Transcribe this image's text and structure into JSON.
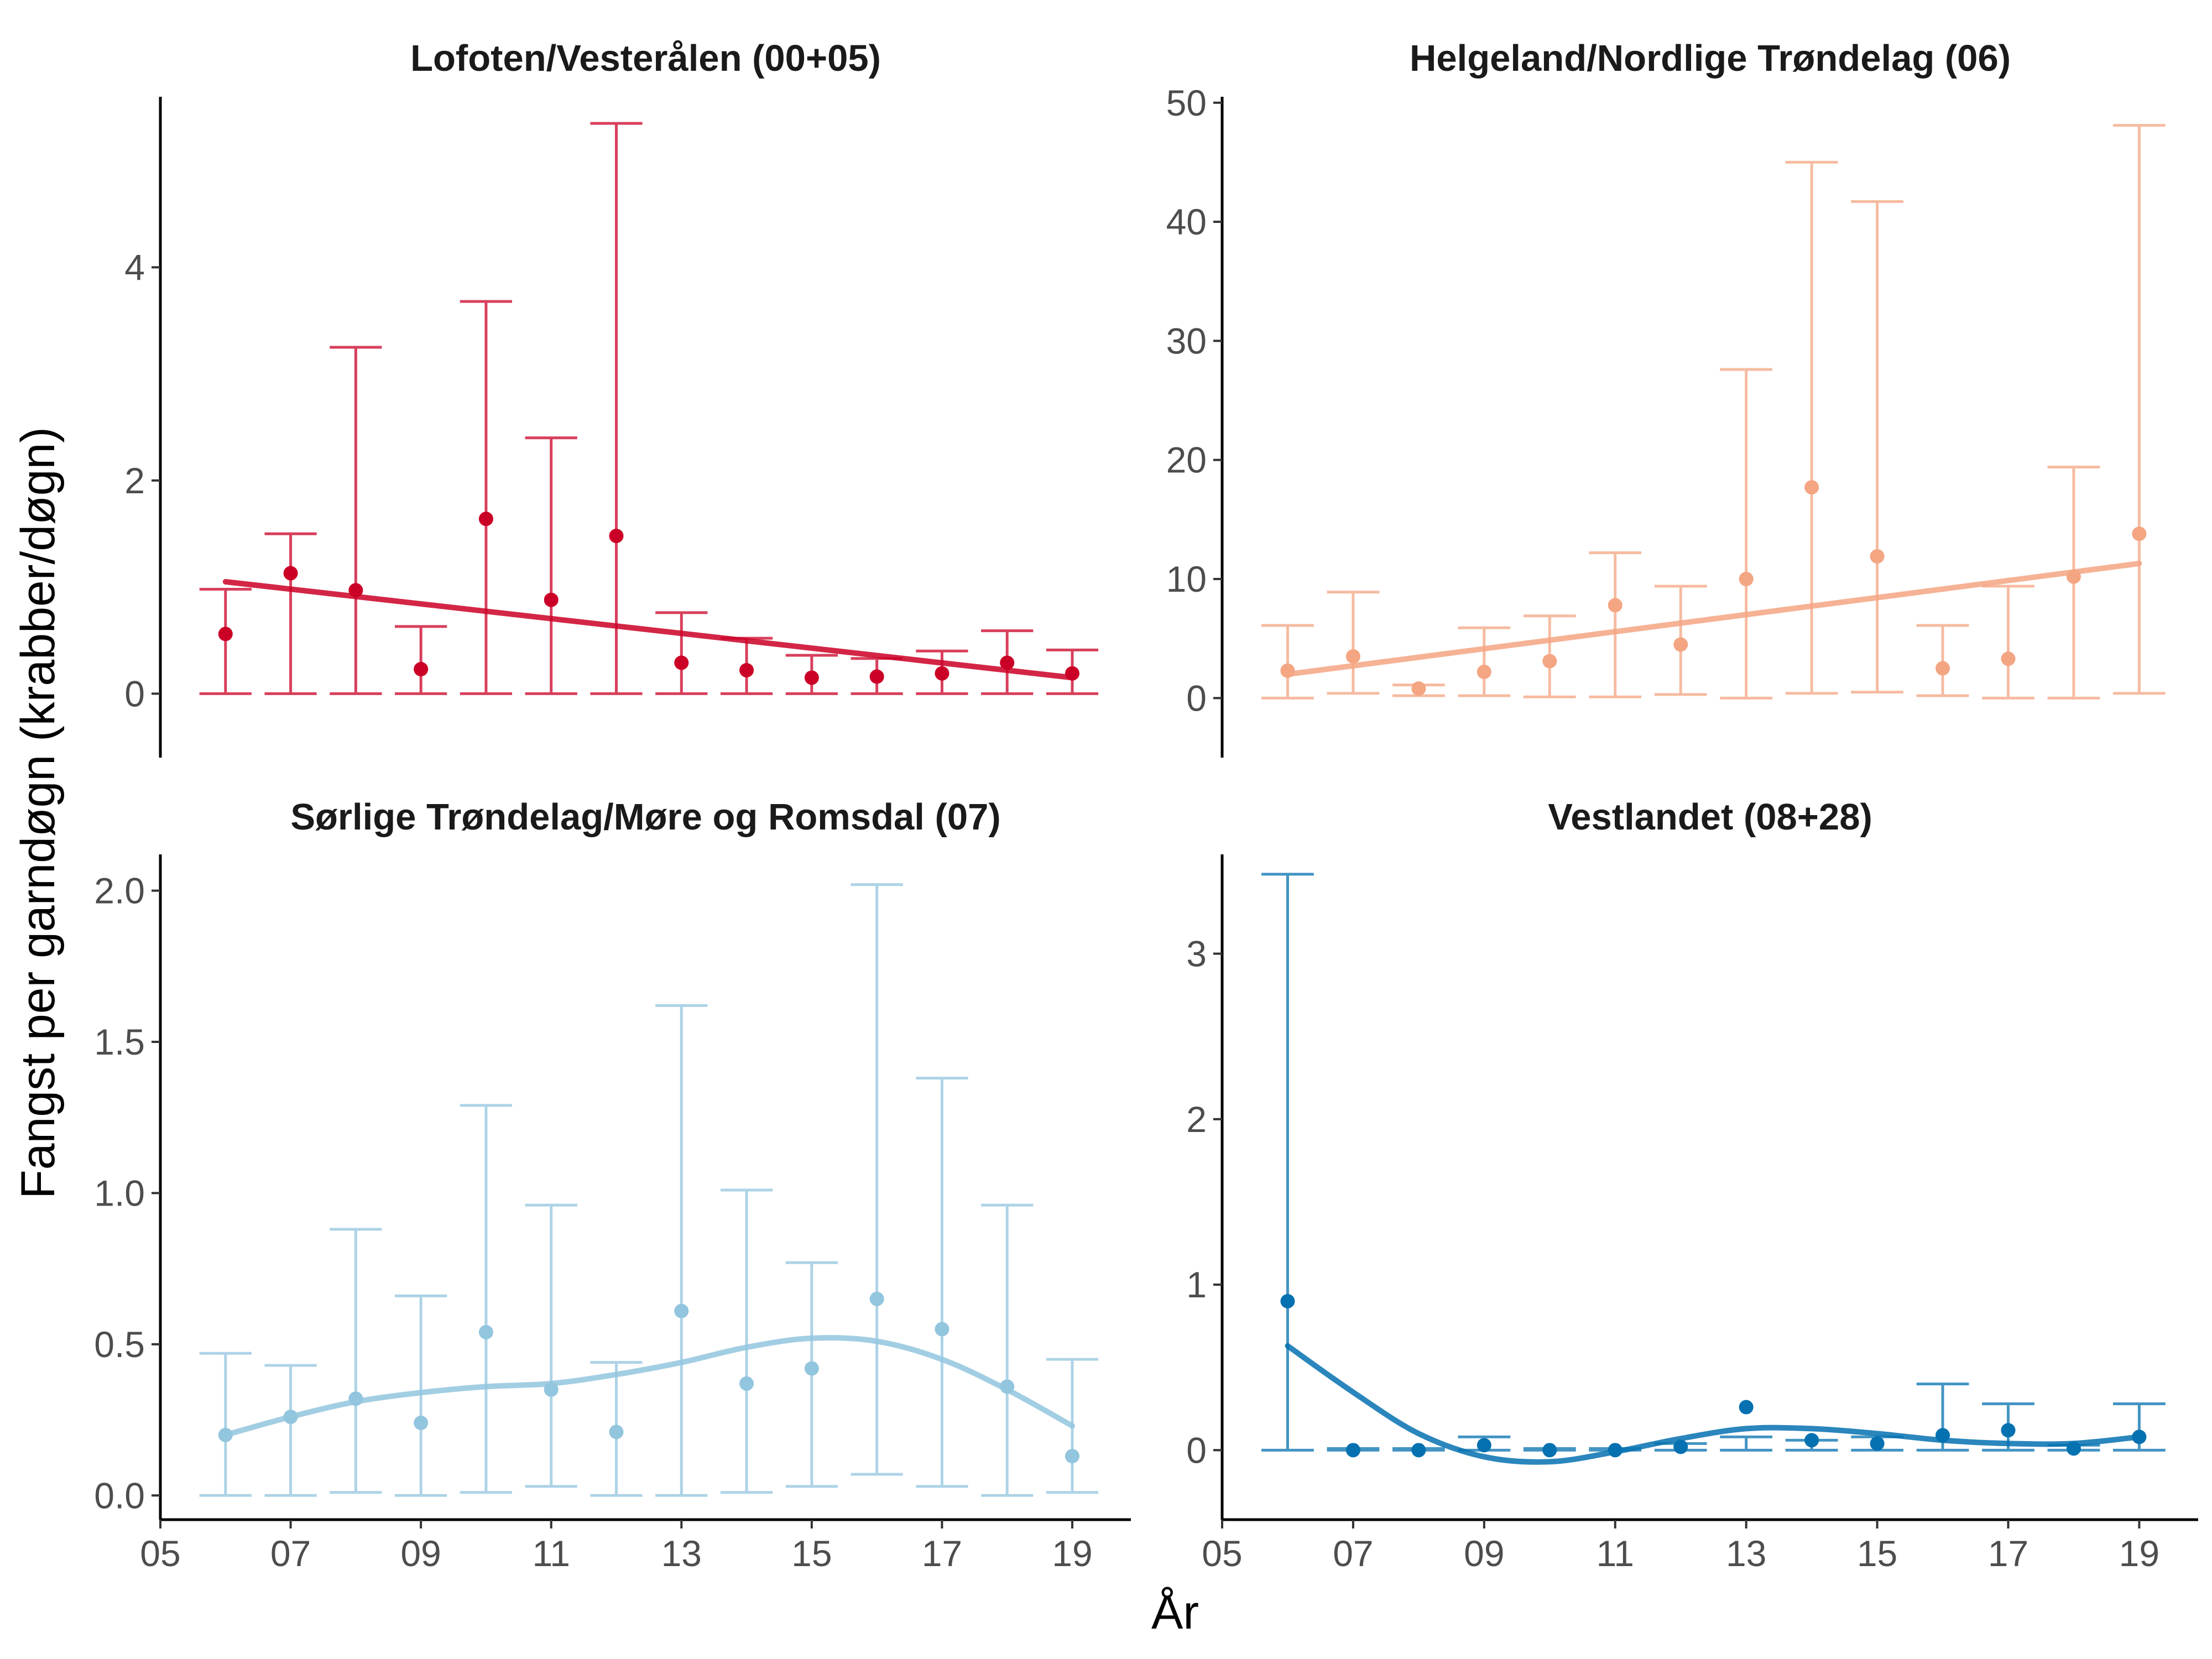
{
  "figure": {
    "ylabel": "Fangst per garndøgn (krabber/døgn)",
    "xlabel": "År"
  },
  "chart_data": [
    {
      "type": "scatter",
      "title": "Lofoten/Vesterålen (00+05)",
      "color": "#CB0026",
      "trend": "linear",
      "x": [
        6,
        7,
        8,
        9,
        10,
        11,
        12,
        13,
        14,
        15,
        16,
        17,
        18,
        19
      ],
      "y": [
        0.56,
        1.13,
        0.97,
        0.23,
        1.64,
        0.88,
        1.48,
        0.29,
        0.22,
        0.15,
        0.16,
        0.19,
        0.29,
        0.19
      ],
      "ci_low": [
        0,
        0,
        0,
        0,
        0,
        0,
        0,
        0,
        0,
        0,
        0,
        0,
        0,
        0
      ],
      "ci_high": [
        0.98,
        1.5,
        3.25,
        0.63,
        3.68,
        2.4,
        5.35,
        0.76,
        0.52,
        0.36,
        0.33,
        0.4,
        0.59,
        0.41
      ],
      "smooth": [
        [
          6,
          1.05
        ],
        [
          19,
          0.15
        ]
      ],
      "xlim": [
        5,
        19.9
      ],
      "ylim": [
        -0.6,
        5.6
      ],
      "yticks": [
        0,
        2,
        4
      ],
      "ytick_labels": [
        "0",
        "2",
        "4"
      ],
      "xticks": [],
      "xtick_labels": []
    },
    {
      "type": "scatter",
      "title": "Helgeland/Nordlige Trøndelag (06)",
      "color": "#F4A582",
      "trend": "linear",
      "x": [
        6,
        7,
        8,
        9,
        10,
        11,
        12,
        13,
        14,
        15,
        16,
        17,
        18,
        19
      ],
      "y": [
        2.3,
        3.5,
        0.8,
        2.2,
        3.1,
        7.8,
        4.5,
        10.0,
        17.7,
        11.9,
        2.5,
        3.3,
        10.2,
        13.8
      ],
      "ci_low": [
        0,
        0.4,
        0.2,
        0.2,
        0.1,
        0.1,
        0.3,
        0,
        0.4,
        0.5,
        0.2,
        0,
        0,
        0.4
      ],
      "ci_high": [
        6.1,
        8.9,
        1.1,
        5.9,
        6.9,
        12.2,
        9.4,
        27.6,
        45.0,
        41.7,
        6.1,
        9.4,
        19.4,
        48.1
      ],
      "smooth": [
        [
          6,
          2.0
        ],
        [
          19,
          11.3
        ]
      ],
      "xlim": [
        5,
        19.9
      ],
      "ylim": [
        -5,
        50.5
      ],
      "yticks": [
        0,
        10,
        20,
        30,
        40,
        50
      ],
      "ytick_labels": [
        "0",
        "10",
        "20",
        "30",
        "40",
        "50"
      ],
      "xticks": [],
      "xtick_labels": []
    },
    {
      "type": "scatter",
      "title": "Sørlige Trøndelag/Møre og Romsdal (07)",
      "color": "#92C5DE",
      "trend": "smooth",
      "x": [
        6,
        7,
        8,
        9,
        10,
        11,
        12,
        13,
        14,
        15,
        16,
        17,
        18,
        19
      ],
      "y": [
        0.2,
        0.26,
        0.32,
        0.24,
        0.54,
        0.35,
        0.21,
        0.61,
        0.37,
        0.42,
        0.65,
        0.55,
        0.36,
        0.13
      ],
      "ci_low": [
        0,
        0,
        0.01,
        0,
        0.01,
        0.03,
        0,
        0,
        0.01,
        0.03,
        0.07,
        0.03,
        0,
        0.01
      ],
      "ci_high": [
        0.47,
        0.43,
        0.88,
        0.66,
        1.29,
        0.96,
        0.44,
        1.62,
        1.01,
        0.77,
        2.02,
        1.38,
        0.96,
        0.45
      ],
      "smooth": [
        [
          6,
          0.2
        ],
        [
          7,
          0.26
        ],
        [
          8,
          0.31
        ],
        [
          9,
          0.34
        ],
        [
          10,
          0.36
        ],
        [
          11,
          0.37
        ],
        [
          12,
          0.4
        ],
        [
          13,
          0.44
        ],
        [
          14,
          0.49
        ],
        [
          15,
          0.52
        ],
        [
          16,
          0.51
        ],
        [
          17,
          0.45
        ],
        [
          18,
          0.35
        ],
        [
          19,
          0.23
        ]
      ],
      "xlim": [
        5,
        19.9
      ],
      "ylim": [
        -0.08,
        2.12
      ],
      "yticks": [
        0,
        0.5,
        1,
        1.5,
        2
      ],
      "ytick_labels": [
        "0.0",
        "0.5",
        "1.0",
        "1.5",
        "2.0"
      ],
      "xticks": [
        5,
        7,
        9,
        11,
        13,
        15,
        17,
        19
      ],
      "xtick_labels": [
        "05",
        "07",
        "09",
        "11",
        "13",
        "15",
        "17",
        "19"
      ]
    },
    {
      "type": "scatter",
      "title": "Vestlandet (08+28)",
      "color": "#0571B0",
      "trend": "smooth",
      "x": [
        6,
        7,
        8,
        9,
        10,
        11,
        12,
        13,
        14,
        15,
        16,
        17,
        18,
        19
      ],
      "y": [
        0.9,
        0.0,
        0.0,
        0.03,
        0.0,
        0.0,
        0.02,
        0.26,
        0.06,
        0.04,
        0.09,
        0.12,
        0.01,
        0.08
      ],
      "ci_low": [
        0,
        0,
        0,
        0,
        0,
        0,
        0,
        0,
        0,
        0,
        0,
        0,
        0,
        0
      ],
      "ci_high": [
        3.48,
        0.01,
        0.01,
        0.08,
        0.01,
        0.01,
        0.04,
        0.08,
        0.06,
        0.08,
        0.4,
        0.28,
        0.03,
        0.28
      ],
      "smooth": [
        [
          6,
          0.63
        ],
        [
          7,
          0.35
        ],
        [
          8,
          0.1
        ],
        [
          9,
          -0.04
        ],
        [
          10,
          -0.07
        ],
        [
          11,
          -0.01
        ],
        [
          12,
          0.07
        ],
        [
          13,
          0.13
        ],
        [
          14,
          0.13
        ],
        [
          15,
          0.1
        ],
        [
          16,
          0.06
        ],
        [
          17,
          0.04
        ],
        [
          18,
          0.04
        ],
        [
          19,
          0.08
        ]
      ],
      "xlim": [
        5,
        19.9
      ],
      "ylim": [
        -0.42,
        3.6
      ],
      "yticks": [
        0,
        1,
        2,
        3
      ],
      "ytick_labels": [
        "0",
        "1",
        "2",
        "3"
      ],
      "xticks": [
        5,
        7,
        9,
        11,
        13,
        15,
        17,
        19
      ],
      "xtick_labels": [
        "05",
        "07",
        "09",
        "11",
        "13",
        "15",
        "17",
        "19"
      ]
    }
  ]
}
